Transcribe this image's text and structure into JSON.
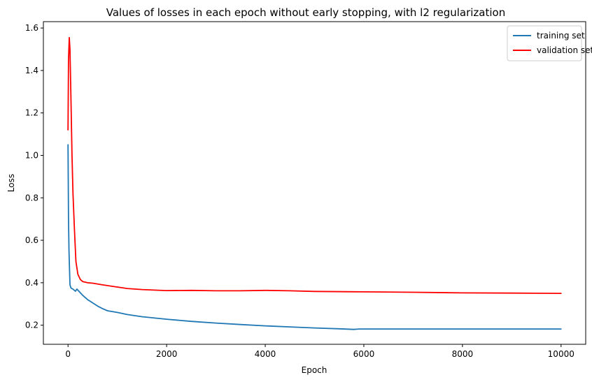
{
  "chart_data": {
    "type": "line",
    "title": "Values of losses in each epoch without early stopping, with l2 regularization",
    "xlabel": "Epoch",
    "ylabel": "Loss",
    "xlim": [
      -500,
      10500
    ],
    "ylim": [
      0.11,
      1.63
    ],
    "xticks": [
      0,
      2000,
      4000,
      6000,
      8000,
      10000
    ],
    "yticks": [
      0.2,
      0.4,
      0.6,
      0.8,
      1.0,
      1.2,
      1.4,
      1.6
    ],
    "grid": false,
    "legend_position": "top-right",
    "series": [
      {
        "name": "training set",
        "color": "#1f77b4",
        "x": [
          0,
          10,
          20,
          40,
          60,
          100,
          150,
          180,
          200,
          300,
          400,
          500,
          600,
          700,
          800,
          1000,
          1200,
          1500,
          2000,
          2500,
          3000,
          3500,
          4000,
          4500,
          5000,
          5500,
          5800,
          5900,
          6000,
          7000,
          8000,
          9000,
          10000
        ],
        "y": [
          1.05,
          0.7,
          0.55,
          0.39,
          0.375,
          0.37,
          0.36,
          0.37,
          0.365,
          0.34,
          0.32,
          0.305,
          0.29,
          0.278,
          0.268,
          0.26,
          0.25,
          0.24,
          0.228,
          0.218,
          0.21,
          0.203,
          0.197,
          0.192,
          0.187,
          0.183,
          0.18,
          0.182,
          0.182,
          0.182,
          0.182,
          0.182,
          0.182
        ]
      },
      {
        "name": "validation set",
        "color": "#ff0000",
        "x": [
          0,
          10,
          25,
          40,
          60,
          80,
          100,
          130,
          160,
          200,
          250,
          300,
          400,
          500,
          700,
          900,
          1200,
          1500,
          2000,
          2500,
          3000,
          3500,
          4000,
          4500,
          5000,
          6000,
          7000,
          8000,
          9000,
          10000
        ],
        "y": [
          1.12,
          1.45,
          1.555,
          1.5,
          1.25,
          1.0,
          0.82,
          0.65,
          0.5,
          0.44,
          0.415,
          0.405,
          0.4,
          0.398,
          0.39,
          0.383,
          0.373,
          0.368,
          0.363,
          0.364,
          0.362,
          0.362,
          0.364,
          0.362,
          0.359,
          0.357,
          0.355,
          0.352,
          0.351,
          0.35
        ]
      }
    ]
  }
}
